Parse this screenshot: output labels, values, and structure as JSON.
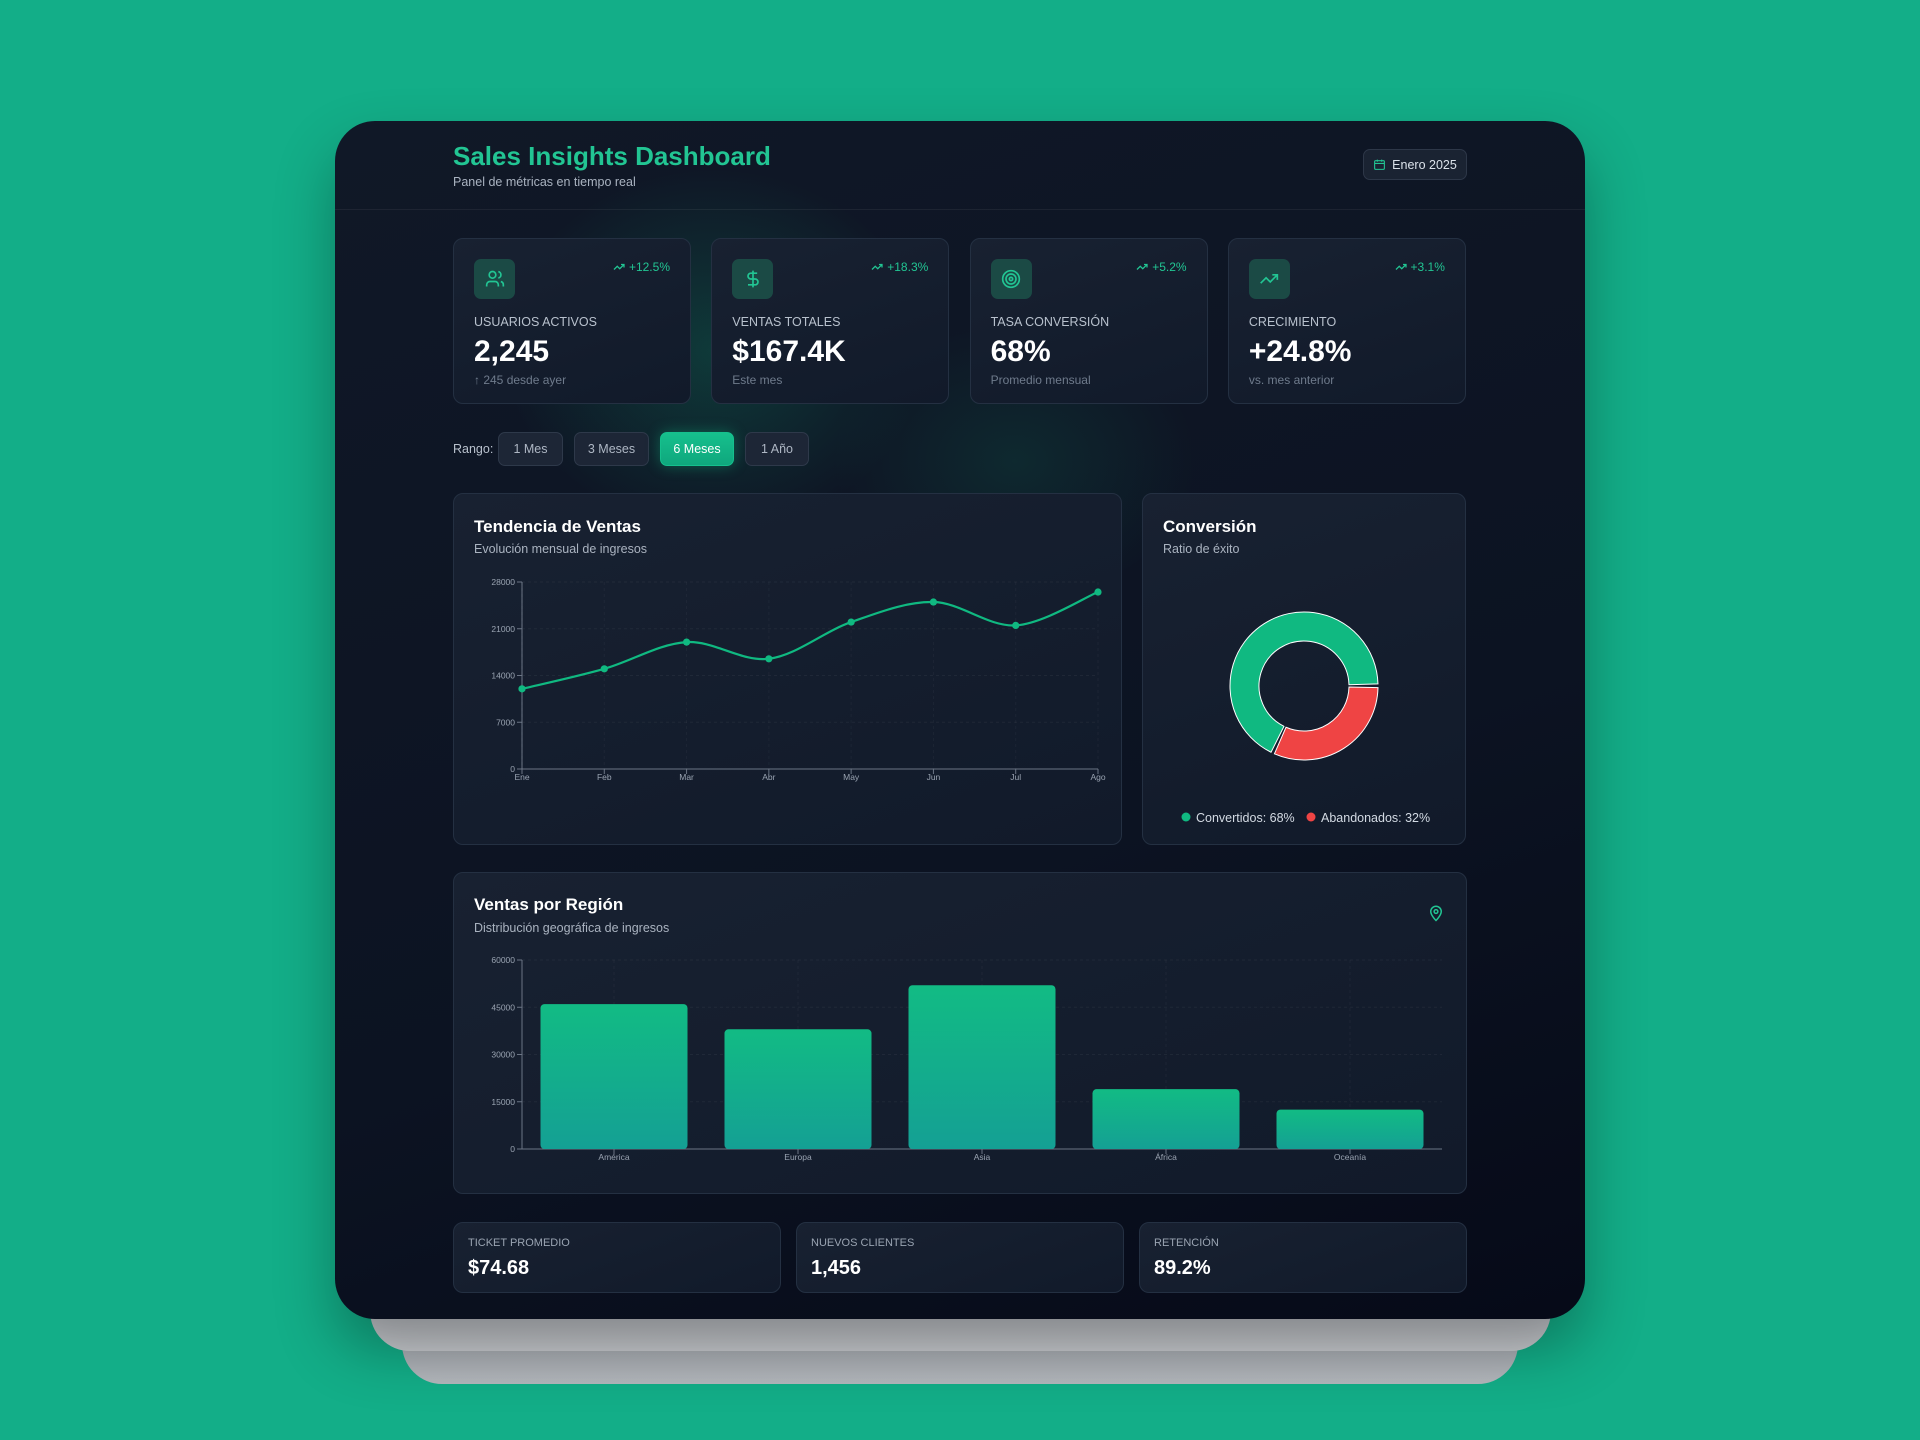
{
  "header": {
    "title": "Sales Insights Dashboard",
    "subtitle": "Panel de métricas en tiempo real",
    "date": "Enero 2025"
  },
  "kpis": [
    {
      "label": "USUARIOS ACTIVOS",
      "value": "2,245",
      "change": "+12.5%",
      "note": "↑ 245 desde ayer"
    },
    {
      "label": "VENTAS TOTALES",
      "value": "$167.4K",
      "change": "+18.3%",
      "note": "Este mes"
    },
    {
      "label": "TASA CONVERSIÓN",
      "value": "68%",
      "change": "+5.2%",
      "note": "Promedio mensual"
    },
    {
      "label": "CRECIMIENTO",
      "value": "+24.8%",
      "change": "+3.1%",
      "note": "vs. mes anterior"
    }
  ],
  "range": {
    "label": "Rango:",
    "options": [
      "1 Mes",
      "3 Meses",
      "6 Meses",
      "1 Año"
    ],
    "active": 2
  },
  "chart_data": [
    {
      "type": "line",
      "title": "Tendencia de Ventas",
      "subtitle": "Evolución mensual de ingresos",
      "categories": [
        "Ene",
        "Feb",
        "Mar",
        "Abr",
        "May",
        "Jun",
        "Jul",
        "Ago"
      ],
      "values": [
        12000,
        15000,
        19000,
        16500,
        22000,
        25000,
        21500,
        26500
      ],
      "color": "#10b981",
      "ylim": [
        0,
        28000
      ],
      "yticks": [
        0,
        7000,
        14000,
        21000,
        28000
      ],
      "grid": true
    },
    {
      "type": "pie",
      "title": "Conversión",
      "subtitle": "Ratio de éxito",
      "labels": [
        "Convertidos: 68%",
        "Abandonados: 32%"
      ],
      "values": [
        68,
        32
      ],
      "colors": [
        "#10b981",
        "#ef4444"
      ]
    },
    {
      "type": "bar",
      "title": "Ventas por Región",
      "subtitle": "Distribución geográfica de ingresos",
      "categories": [
        "América",
        "Europa",
        "Asia",
        "África",
        "Oceanía"
      ],
      "values": [
        46000,
        38000,
        52000,
        19000,
        12500
      ],
      "color": "#10b981",
      "ylim": [
        0,
        60000
      ],
      "yticks": [
        0,
        15000,
        30000,
        45000,
        60000
      ],
      "grid": true
    }
  ],
  "footer_stats": [
    {
      "label": "TICKET PROMEDIO",
      "value": "$74.68"
    },
    {
      "label": "NUEVOS CLIENTES",
      "value": "1,456"
    },
    {
      "label": "RETENCIÓN",
      "value": "89.2%"
    }
  ]
}
